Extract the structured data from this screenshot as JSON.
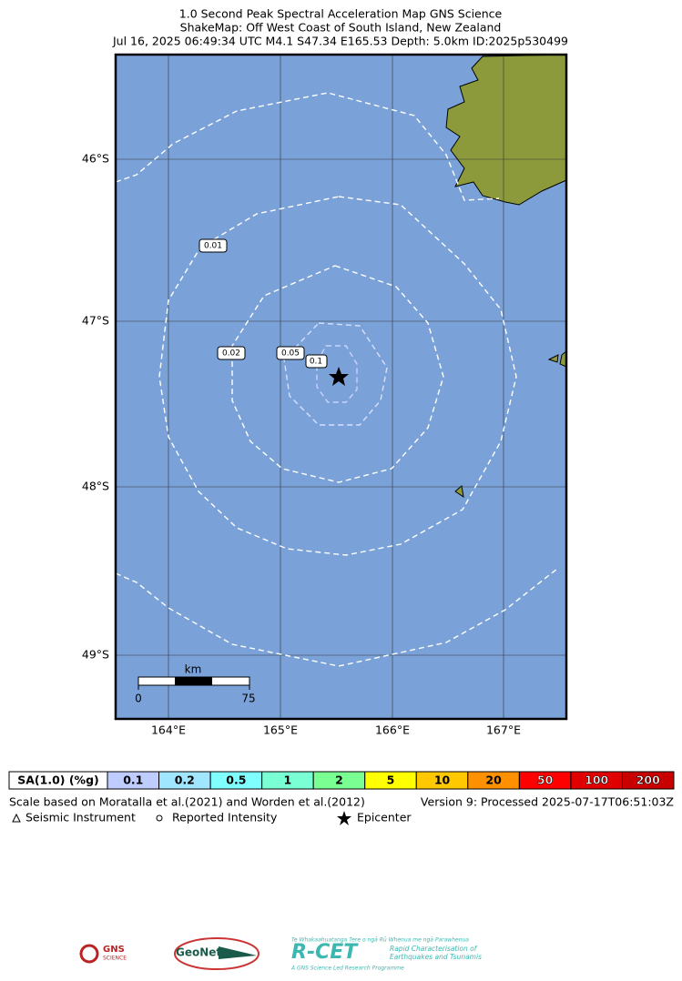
{
  "header": {
    "lines": [
      "1.0 Second Peak Spectral Acceleration Map GNS Science",
      "ShakeMap: Off West Coast of South Island, New Zealand",
      "Jul 16, 2025 06:49:34 UTC M4.1 S47.34 E165.53 Depth: 5.0km ID:2025p530499"
    ]
  },
  "map": {
    "lat_ticks": [
      "46°S",
      "47°S",
      "48°S",
      "49°S"
    ],
    "lon_ticks": [
      "164°E",
      "165°E",
      "166°E",
      "167°E"
    ],
    "contour_labels": [
      "0.01",
      "0.02",
      "0.05",
      "0.1"
    ],
    "scale_bar": {
      "unit": "km",
      "start": "0",
      "end": "75"
    }
  },
  "legend": {
    "label": "SA(1.0) (%g)",
    "bins": [
      {
        "label": "0.1",
        "color": "#bfccff"
      },
      {
        "label": "0.2",
        "color": "#a0e6ff"
      },
      {
        "label": "0.5",
        "color": "#80ffff"
      },
      {
        "label": "1",
        "color": "#7affd4"
      },
      {
        "label": "2",
        "color": "#7aff93"
      },
      {
        "label": "5",
        "color": "#ffff00"
      },
      {
        "label": "10",
        "color": "#ffc800"
      },
      {
        "label": "20",
        "color": "#ff9100"
      },
      {
        "label": "50",
        "color": "#ff0000"
      },
      {
        "label": "100",
        "color": "#e00000"
      },
      {
        "label": "200",
        "color": "#c80000"
      }
    ]
  },
  "notes": {
    "scale": "Scale based on Moratalla et al.(2021) and Worden et al.(2012)",
    "version": "Version 9: Processed 2025-07-17T06:51:03Z",
    "symbols": [
      "Seismic Instrument",
      "Reported Intensity",
      "Epicenter"
    ]
  },
  "logos": {
    "gns": "GNS",
    "gns_sub": "SCIENCE",
    "geonet": "GeoNet",
    "rcet_top": "Te Whakaahuatanga Tere o ngā Rū Whenua me ngā Parawhenua",
    "rcet": "R-CET",
    "rcet_line1": "Rapid Characterisation of",
    "rcet_line2": "Earthquakes and Tsunamis",
    "rcet_sub": "A GNS Science Led Research Programme"
  }
}
